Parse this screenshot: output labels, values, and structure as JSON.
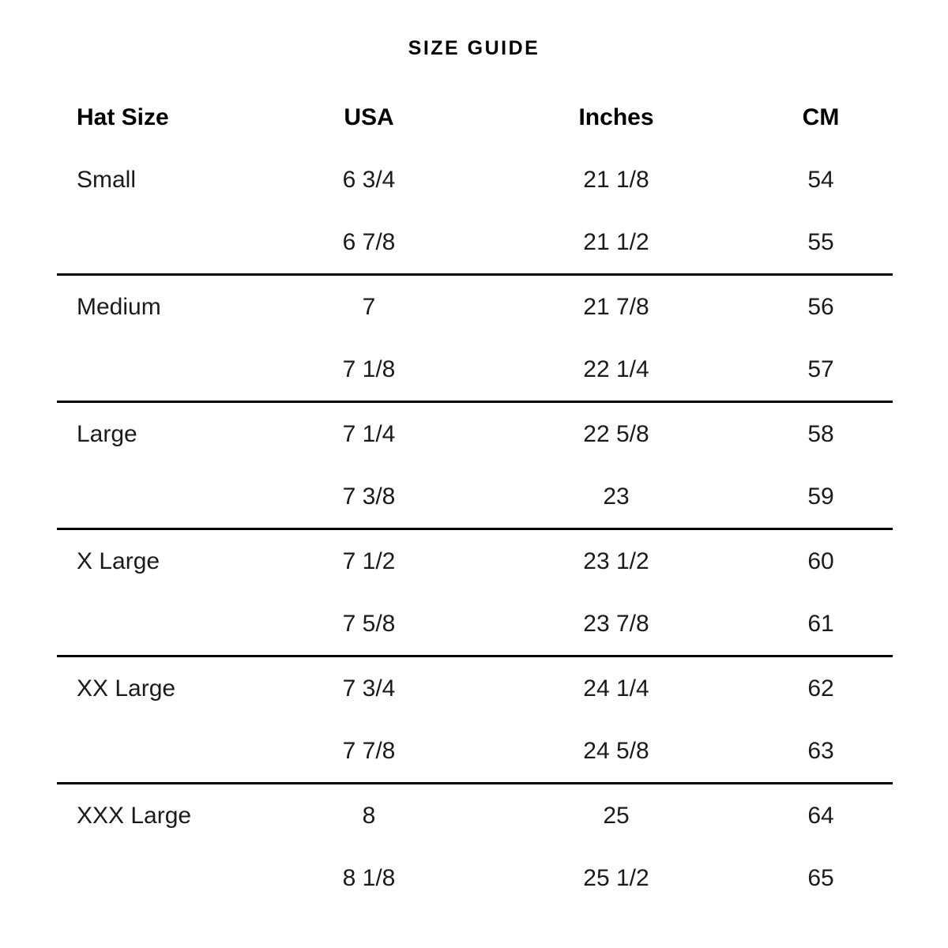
{
  "title": "SIZE GUIDE",
  "colors": {
    "background": "#ffffff",
    "heading_text": "#000000",
    "body_text": "#1b1b1b",
    "rule": "#000000"
  },
  "table": {
    "columns": [
      "Hat Size",
      "USA",
      "Inches",
      "CM"
    ],
    "sections": [
      {
        "name": "Small",
        "rows": [
          [
            "Small",
            "6 3/4",
            "21 1/8",
            "54"
          ],
          [
            "",
            "6 7/8",
            "21 1/2",
            "55"
          ]
        ]
      },
      {
        "name": "Medium",
        "rows": [
          [
            "Medium",
            "7",
            "21 7/8",
            "56"
          ],
          [
            "",
            "7 1/8",
            "22 1/4",
            "57"
          ]
        ]
      },
      {
        "name": "Large",
        "rows": [
          [
            "Large",
            "7 1/4",
            "22 5/8",
            "58"
          ],
          [
            "",
            "7 3/8",
            "23",
            "59"
          ]
        ]
      },
      {
        "name": "X Large",
        "rows": [
          [
            "X Large",
            "7 1/2",
            "23 1/2",
            "60"
          ],
          [
            "",
            "7 5/8",
            "23 7/8",
            "61"
          ]
        ]
      },
      {
        "name": "XX Large",
        "rows": [
          [
            "XX Large",
            "7 3/4",
            "24 1/4",
            "62"
          ],
          [
            "",
            "7 7/8",
            "24 5/8",
            "63"
          ]
        ]
      },
      {
        "name": "XXX Large",
        "rows": [
          [
            "XXX Large",
            "8",
            "25",
            "64"
          ],
          [
            "",
            "8 1/8",
            "25 1/2",
            "65"
          ]
        ]
      }
    ]
  }
}
